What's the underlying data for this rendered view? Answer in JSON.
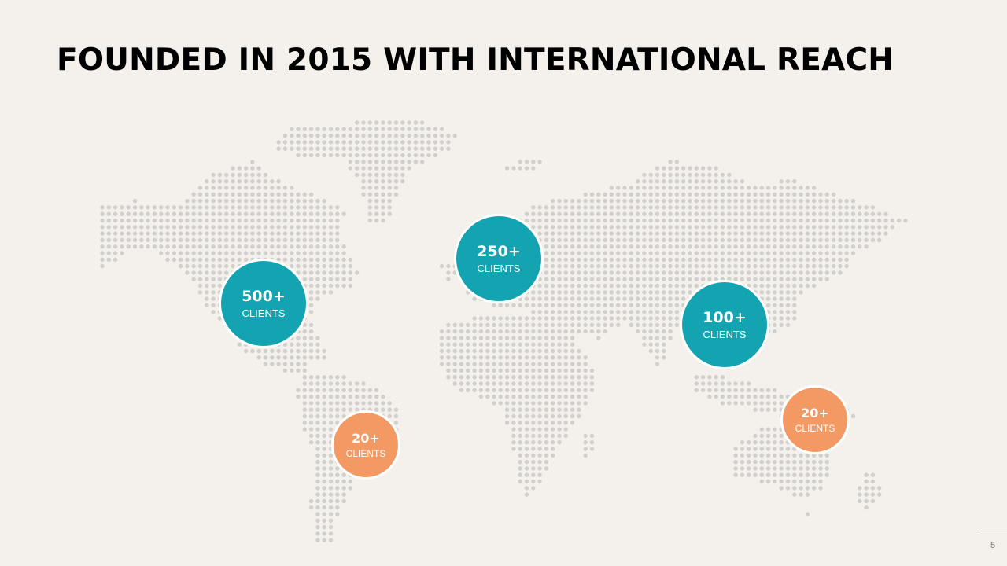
{
  "slide": {
    "title": "FOUNDED IN 2015 WITH INTERNATIONAL REACH",
    "page_number": "5"
  },
  "colors": {
    "background": "#f4f1ec",
    "teal": "#13a3b1",
    "orange": "#f39a64",
    "map_dots": "#d2d0cc"
  },
  "regions": [
    {
      "region": "north-america",
      "count": "500+",
      "label": "CLIENTS",
      "color": "#13a3b1"
    },
    {
      "region": "europe",
      "count": "250+",
      "label": "CLIENTS",
      "color": "#13a3b1"
    },
    {
      "region": "asia",
      "count": "100+",
      "label": "CLIENTS",
      "color": "#13a3b1"
    },
    {
      "region": "south-america",
      "count": "20+",
      "label": "CLIENTS",
      "color": "#f39a64"
    },
    {
      "region": "oceania",
      "count": "20+",
      "label": "CLIENTS",
      "color": "#f39a64"
    }
  ]
}
